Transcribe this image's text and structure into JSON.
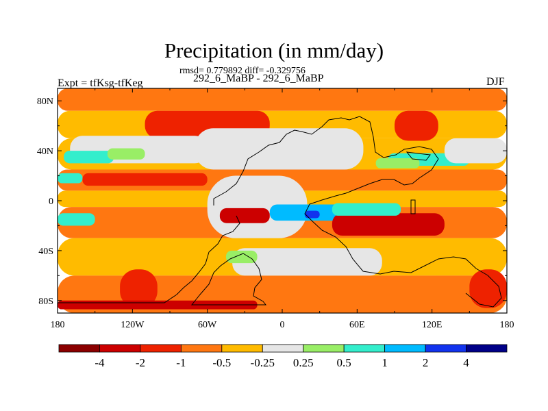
{
  "header": {
    "title": "Precipitation (in mm/day)",
    "stats": "rmsd= 0.779892 diff= -0.329756",
    "expt_label": "Expt = tfKsg-tfKeg",
    "periods": "292_6_MaBP - 292_6_MaBP",
    "season": "DJF"
  },
  "chart_data": {
    "type": "heatmap",
    "title": "Precipitation (in mm/day)",
    "subtitle": "292_6_MaBP - 292_6_MaBP",
    "variable": "precipitation difference",
    "units": "mm/day",
    "season": "DJF",
    "xlabel": "",
    "ylabel": "",
    "xlim": [
      -180,
      180
    ],
    "ylim": [
      -90,
      90
    ],
    "x_ticks": [
      {
        "value": -180,
        "label": "180"
      },
      {
        "value": -120,
        "label": "120W"
      },
      {
        "value": -60,
        "label": "60W"
      },
      {
        "value": 0,
        "label": "0"
      },
      {
        "value": 60,
        "label": "60E"
      },
      {
        "value": 120,
        "label": "120E"
      },
      {
        "value": 180,
        "label": "180"
      }
    ],
    "y_ticks": [
      {
        "value": 80,
        "label": "80N"
      },
      {
        "value": 40,
        "label": "40N"
      },
      {
        "value": 0,
        "label": "0"
      },
      {
        "value": -40,
        "label": "40S"
      },
      {
        "value": -80,
        "label": "80S"
      }
    ],
    "colorbar": {
      "levels": [
        "-4",
        "-2",
        "-1",
        "-0.5",
        "-0.25",
        "0.25",
        "0.5",
        "1",
        "2",
        "4"
      ],
      "colors": [
        "#8b0000",
        "#cc0000",
        "#ee2200",
        "#ff7711",
        "#ffbb00",
        "#e6e6e6",
        "#99ee66",
        "#33eecc",
        "#00bbff",
        "#1133ee",
        "#000088"
      ]
    },
    "regions": [
      {
        "name": "band-80N",
        "lat": [
          72,
          90
        ],
        "lon": [
          -180,
          180
        ],
        "cls": 3
      },
      {
        "name": "band-60N",
        "lat": [
          50,
          72
        ],
        "lon": [
          -180,
          180
        ],
        "cls": 4
      },
      {
        "name": "band-30N",
        "lat": [
          25,
          50
        ],
        "lon": [
          -180,
          180
        ],
        "cls": 4
      },
      {
        "name": "band-15N",
        "lat": [
          8,
          25
        ],
        "lon": [
          -180,
          180
        ],
        "cls": 3
      },
      {
        "name": "band-0",
        "lat": [
          -5,
          8
        ],
        "lon": [
          -180,
          180
        ],
        "cls": 4
      },
      {
        "name": "band-15S",
        "lat": [
          -30,
          -5
        ],
        "lon": [
          -180,
          180
        ],
        "cls": 3
      },
      {
        "name": "band-45S",
        "lat": [
          -60,
          -30
        ],
        "lon": [
          -180,
          180
        ],
        "cls": 4
      },
      {
        "name": "band-75S",
        "lat": [
          -90,
          -60
        ],
        "lon": [
          -180,
          180
        ],
        "cls": 3
      },
      {
        "name": "n-atlantic-red",
        "lat": [
          50,
          72
        ],
        "lon": [
          -110,
          -10
        ],
        "cls": 2
      },
      {
        "name": "n-pacific-neutral",
        "lat": [
          30,
          52
        ],
        "lon": [
          -170,
          -60
        ],
        "cls": 5
      },
      {
        "name": "n-pacific-cyan",
        "lat": [
          30,
          40
        ],
        "lon": [
          -175,
          -135
        ],
        "cls": 7
      },
      {
        "name": "n-pacific-green",
        "lat": [
          33,
          42
        ],
        "lon": [
          -140,
          -110
        ],
        "cls": 6
      },
      {
        "name": "subtropic-cyan",
        "lat": [
          14,
          22
        ],
        "lon": [
          -180,
          -160
        ],
        "cls": 7
      },
      {
        "name": "subtropic-red",
        "lat": [
          12,
          22
        ],
        "lon": [
          -160,
          -60
        ],
        "cls": 2
      },
      {
        "name": "eurasia-neutral",
        "lat": [
          25,
          58
        ],
        "lon": [
          -70,
          65
        ],
        "cls": 5
      },
      {
        "name": "asia-cyan",
        "lat": [
          28,
          38
        ],
        "lon": [
          85,
          150
        ],
        "cls": 7
      },
      {
        "name": "asia-green",
        "lat": [
          26,
          34
        ],
        "lon": [
          75,
          110
        ],
        "cls": 6
      },
      {
        "name": "siberia-red",
        "lat": [
          48,
          72
        ],
        "lon": [
          90,
          125
        ],
        "cls": 2
      },
      {
        "name": "n-pacific-east-neutral",
        "lat": [
          30,
          50
        ],
        "lon": [
          130,
          180
        ],
        "cls": 5
      },
      {
        "name": "africa-neutral",
        "lat": [
          -30,
          20
        ],
        "lon": [
          -60,
          20
        ],
        "cls": 5
      },
      {
        "name": "equatorial-blue",
        "lat": [
          -16,
          -3
        ],
        "lon": [
          -10,
          55
        ],
        "cls": 8
      },
      {
        "name": "equatorial-core",
        "lat": [
          -14,
          -8
        ],
        "lon": [
          18,
          30
        ],
        "cls": 9
      },
      {
        "name": "equatorial-red",
        "lat": [
          -18,
          -6
        ],
        "lon": [
          -50,
          -10
        ],
        "cls": 1
      },
      {
        "name": "indian-ocean-red",
        "lat": [
          -28,
          -10
        ],
        "lon": [
          40,
          130
        ],
        "cls": 1
      },
      {
        "name": "indian-ocean-cyan",
        "lat": [
          -12,
          -2
        ],
        "lon": [
          40,
          95
        ],
        "cls": 7
      },
      {
        "name": "s-pacific-green",
        "lat": [
          -20,
          -10
        ],
        "lon": [
          -180,
          -150
        ],
        "cls": 7
      },
      {
        "name": "south-neutral",
        "lat": [
          -60,
          -38
        ],
        "lon": [
          -40,
          80
        ],
        "cls": 5
      },
      {
        "name": "south-green",
        "lat": [
          -50,
          -40
        ],
        "lon": [
          -45,
          -20
        ],
        "cls": 6
      },
      {
        "name": "antarctic-red-east",
        "lat": [
          -86,
          -55
        ],
        "lon": [
          150,
          180
        ],
        "cls": 2
      },
      {
        "name": "antarctic-red-west",
        "lat": [
          -86,
          -55
        ],
        "lon": [
          -130,
          -100
        ],
        "cls": 2
      },
      {
        "name": "antarctic-strip",
        "lat": [
          -87,
          -80
        ],
        "lon": [
          -180,
          -20
        ],
        "cls": 1
      }
    ]
  }
}
